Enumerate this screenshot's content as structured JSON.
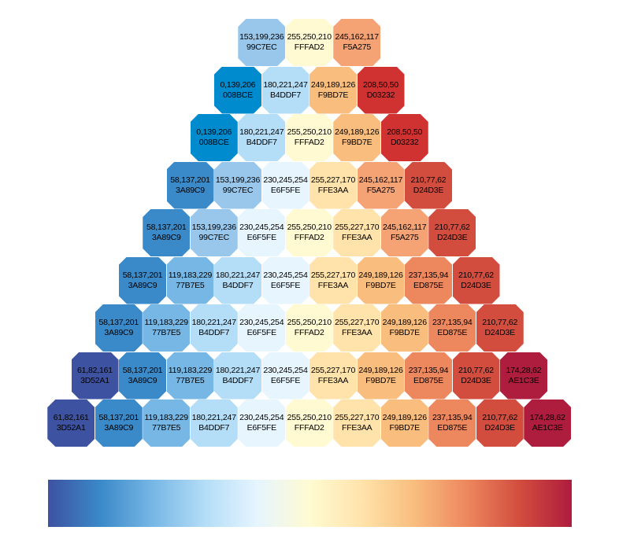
{
  "rows": [
    [
      {
        "rgb": "153,199,236",
        "hex": "99C7EC"
      },
      {
        "rgb": "255,250,210",
        "hex": "FFFAD2"
      },
      {
        "rgb": "245,162,117",
        "hex": "F5A275"
      }
    ],
    [
      {
        "rgb": "0,139,206",
        "hex": "008BCE"
      },
      {
        "rgb": "180,221,247",
        "hex": "B4DDF7"
      },
      {
        "rgb": "249,189,126",
        "hex": "F9BD7E"
      },
      {
        "rgb": "208,50,50",
        "hex": "D03232"
      }
    ],
    [
      {
        "rgb": "0,139,206",
        "hex": "008BCE"
      },
      {
        "rgb": "180,221,247",
        "hex": "B4DDF7"
      },
      {
        "rgb": "255,250,210",
        "hex": "FFFAD2"
      },
      {
        "rgb": "249,189,126",
        "hex": "F9BD7E"
      },
      {
        "rgb": "208,50,50",
        "hex": "D03232"
      }
    ],
    [
      {
        "rgb": "58,137,201",
        "hex": "3A89C9"
      },
      {
        "rgb": "153,199,236",
        "hex": "99C7EC"
      },
      {
        "rgb": "230,245,254",
        "hex": "E6F5FE"
      },
      {
        "rgb": "255,227,170",
        "hex": "FFE3AA"
      },
      {
        "rgb": "245,162,117",
        "hex": "F5A275"
      },
      {
        "rgb": "210,77,62",
        "hex": "D24D3E"
      }
    ],
    [
      {
        "rgb": "58,137,201",
        "hex": "3A89C9"
      },
      {
        "rgb": "153,199,236",
        "hex": "99C7EC"
      },
      {
        "rgb": "230,245,254",
        "hex": "E6F5FE"
      },
      {
        "rgb": "255,250,210",
        "hex": "FFFAD2"
      },
      {
        "rgb": "255,227,170",
        "hex": "FFE3AA"
      },
      {
        "rgb": "245,162,117",
        "hex": "F5A275"
      },
      {
        "rgb": "210,77,62",
        "hex": "D24D3E"
      }
    ],
    [
      {
        "rgb": "58,137,201",
        "hex": "3A89C9"
      },
      {
        "rgb": "119,183,229",
        "hex": "77B7E5"
      },
      {
        "rgb": "180,221,247",
        "hex": "B4DDF7"
      },
      {
        "rgb": "230,245,254",
        "hex": "E6F5FE"
      },
      {
        "rgb": "255,227,170",
        "hex": "FFE3AA"
      },
      {
        "rgb": "249,189,126",
        "hex": "F9BD7E"
      },
      {
        "rgb": "237,135,94",
        "hex": "ED875E"
      },
      {
        "rgb": "210,77,62",
        "hex": "D24D3E"
      }
    ],
    [
      {
        "rgb": "58,137,201",
        "hex": "3A89C9"
      },
      {
        "rgb": "119,183,229",
        "hex": "77B7E5"
      },
      {
        "rgb": "180,221,247",
        "hex": "B4DDF7"
      },
      {
        "rgb": "230,245,254",
        "hex": "E6F5FE"
      },
      {
        "rgb": "255,250,210",
        "hex": "FFFAD2"
      },
      {
        "rgb": "255,227,170",
        "hex": "FFE3AA"
      },
      {
        "rgb": "249,189,126",
        "hex": "F9BD7E"
      },
      {
        "rgb": "237,135,94",
        "hex": "ED875E"
      },
      {
        "rgb": "210,77,62",
        "hex": "D24D3E"
      }
    ],
    [
      {
        "rgb": "61,82,161",
        "hex": "3D52A1"
      },
      {
        "rgb": "58,137,201",
        "hex": "3A89C9"
      },
      {
        "rgb": "119,183,229",
        "hex": "77B7E5"
      },
      {
        "rgb": "180,221,247",
        "hex": "B4DDF7"
      },
      {
        "rgb": "230,245,254",
        "hex": "E6F5FE"
      },
      {
        "rgb": "255,227,170",
        "hex": "FFE3AA"
      },
      {
        "rgb": "249,189,126",
        "hex": "F9BD7E"
      },
      {
        "rgb": "237,135,94",
        "hex": "ED875E"
      },
      {
        "rgb": "210,77,62",
        "hex": "D24D3E"
      },
      {
        "rgb": "174,28,62",
        "hex": "AE1C3E"
      }
    ],
    [
      {
        "rgb": "61,82,161",
        "hex": "3D52A1"
      },
      {
        "rgb": "58,137,201",
        "hex": "3A89C9"
      },
      {
        "rgb": "119,183,229",
        "hex": "77B7E5"
      },
      {
        "rgb": "180,221,247",
        "hex": "B4DDF7"
      },
      {
        "rgb": "230,245,254",
        "hex": "E6F5FE"
      },
      {
        "rgb": "255,250,210",
        "hex": "FFFAD2"
      },
      {
        "rgb": "255,227,170",
        "hex": "FFE3AA"
      },
      {
        "rgb": "249,189,126",
        "hex": "F9BD7E"
      },
      {
        "rgb": "237,135,94",
        "hex": "ED875E"
      },
      {
        "rgb": "210,77,62",
        "hex": "D24D3E"
      },
      {
        "rgb": "174,28,62",
        "hex": "AE1C3E"
      }
    ]
  ],
  "colorbar_stops": [
    "#3D52A1",
    "#3A89C9",
    "#77B7E5",
    "#B4DDF7",
    "#E6F5FE",
    "#FFFAD2",
    "#FFE3AA",
    "#F9BD7E",
    "#ED875E",
    "#D24D3E",
    "#AE1C3E"
  ]
}
